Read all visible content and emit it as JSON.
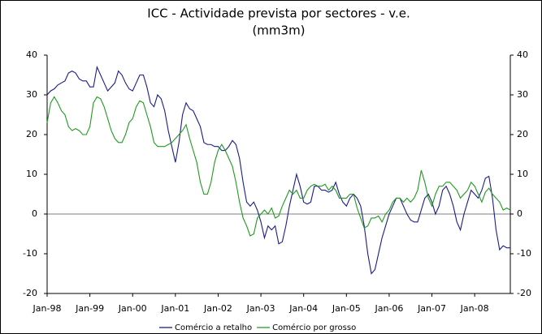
{
  "chart_data": {
    "type": "line",
    "title": "ICC - Actividade prevista por sectores - v.e.",
    "subtitle": "(mm3m)",
    "categories": [
      "Jan-98",
      null,
      null,
      null,
      null,
      null,
      null,
      null,
      null,
      null,
      null,
      null,
      "Jan-99",
      null,
      null,
      null,
      null,
      null,
      null,
      null,
      null,
      null,
      null,
      null,
      "Jan-00",
      null,
      null,
      null,
      null,
      null,
      null,
      null,
      null,
      null,
      null,
      null,
      "Jan-01",
      null,
      null,
      null,
      null,
      null,
      null,
      null,
      null,
      null,
      null,
      null,
      "Jan-02",
      null,
      null,
      null,
      null,
      null,
      null,
      null,
      null,
      null,
      null,
      null,
      "Jan-03",
      null,
      null,
      null,
      null,
      null,
      null,
      null,
      null,
      null,
      null,
      null,
      "Jan-04",
      null,
      null,
      null,
      null,
      null,
      null,
      null,
      null,
      null,
      null,
      null,
      "Jan-05",
      null,
      null,
      null,
      null,
      null,
      null,
      null,
      null,
      null,
      null,
      null,
      "Jan-06",
      null,
      null,
      null,
      null,
      null,
      null,
      null,
      null,
      null,
      null,
      null,
      "Jan-07",
      null,
      null,
      null,
      null,
      null,
      null,
      null,
      null,
      null,
      null,
      null,
      "Jan-08",
      null,
      null,
      null,
      null,
      null,
      null,
      null,
      null,
      null,
      null
    ],
    "series": [
      {
        "name": "Comércio a retalho",
        "color": "#1c1c8a",
        "values": [
          30,
          31,
          31.5,
          32.5,
          33,
          33.5,
          35.5,
          36,
          35.5,
          34,
          33.5,
          33.5,
          32,
          32,
          37,
          35,
          33,
          31,
          32,
          33,
          36,
          35,
          33,
          31.5,
          31,
          33,
          35,
          35,
          32,
          28,
          27,
          30,
          29,
          26,
          21,
          17,
          13,
          18,
          25,
          28,
          26.5,
          26,
          24,
          22,
          18,
          17.5,
          17.5,
          17,
          17,
          16,
          16,
          17,
          18.5,
          17.5,
          14,
          8,
          3,
          2,
          3,
          1,
          -2,
          -6,
          -3,
          -4,
          -3,
          -7.5,
          -7,
          -3,
          2,
          6,
          10,
          7,
          3,
          2.5,
          3,
          7,
          7,
          6,
          6,
          5.5,
          6,
          8,
          5,
          3,
          2,
          4,
          5,
          4,
          2,
          -3,
          -10,
          -15,
          -14,
          -10,
          -6,
          -3,
          0,
          2,
          4,
          4,
          2,
          0,
          -1.5,
          -2,
          -2,
          1,
          4,
          5,
          3,
          0,
          2,
          6,
          7,
          5,
          2,
          -2,
          -4,
          0,
          3,
          6,
          5,
          4,
          6,
          9,
          9.5,
          4,
          -4,
          -9,
          -8,
          -8.5,
          -8.5
        ]
      },
      {
        "name": "Comércio por grosso",
        "color": "#1f9a1f",
        "values": [
          23,
          28,
          29.5,
          28,
          26,
          25,
          22,
          21,
          21.5,
          21,
          20,
          20,
          22,
          28,
          29.5,
          29,
          27,
          24,
          21,
          19,
          18,
          18,
          20,
          23,
          24,
          27,
          28.5,
          28,
          25,
          22,
          18,
          17,
          17,
          17,
          17.5,
          18,
          19,
          20,
          21,
          22.5,
          19,
          16,
          13,
          8,
          5,
          5,
          8,
          13,
          16,
          17.5,
          16,
          14,
          12,
          8,
          3,
          -1,
          -3,
          -5.5,
          -5,
          -1,
          0,
          1,
          0,
          1.5,
          -1,
          -0.5,
          2,
          4,
          6,
          5,
          6,
          4,
          4,
          6,
          7,
          7.5,
          7,
          7,
          7.5,
          6,
          7,
          6,
          4,
          4,
          4,
          5,
          5,
          1.5,
          -1,
          -3.5,
          -3,
          -1,
          -1,
          -0.5,
          -2,
          0,
          1,
          3,
          4,
          4,
          3,
          4,
          3,
          4,
          6,
          11,
          8,
          4,
          2,
          5,
          7,
          7,
          8,
          8,
          7,
          6,
          4,
          5,
          6,
          8,
          7,
          5,
          3,
          5.5,
          6.5,
          5,
          4,
          3,
          1,
          1.5,
          1
        ]
      }
    ],
    "ylim": [
      -20,
      40
    ],
    "yticks": [
      -20,
      -10,
      0,
      10,
      20,
      30,
      40
    ],
    "y2lim": [
      -20,
      40
    ],
    "y2ticks": [
      -20,
      -10,
      0,
      10,
      20,
      30,
      40
    ],
    "legend": "bottom"
  }
}
